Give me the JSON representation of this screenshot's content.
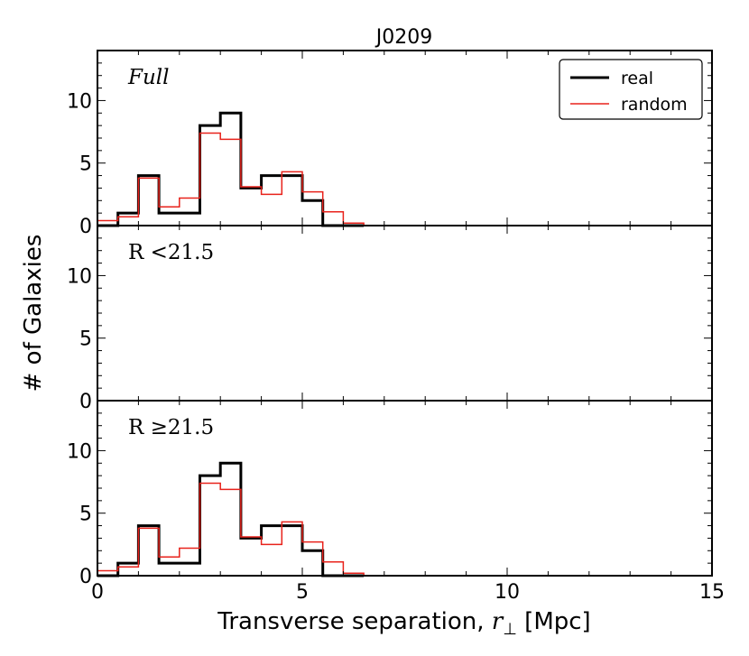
{
  "chart_data": {
    "type": "histogram",
    "title": "J0209",
    "xlabel_prefix": "Transverse separation, ",
    "xlabel_symbol": "r",
    "xlabel_sub": "⊥",
    "xlabel_suffix": " [Mpc]",
    "ylabel": "# of Galaxies",
    "xlim": [
      0,
      15
    ],
    "ylim": [
      0,
      14
    ],
    "xticks": [
      0,
      5,
      10,
      15
    ],
    "yticks": [
      0,
      5,
      10
    ],
    "bin_edges": [
      0,
      0.5,
      1,
      1.5,
      2,
      2.5,
      3,
      3.5,
      4,
      4.5,
      5,
      5.5,
      6,
      6.5
    ],
    "legend": {
      "position": "top-right",
      "entries": [
        {
          "name": "real",
          "color": "#000000"
        },
        {
          "name": "random",
          "color": "#e8221b"
        }
      ]
    },
    "panels": [
      {
        "label": "Full",
        "label_style": "italic",
        "series": [
          {
            "name": "real",
            "values": [
              0,
              1,
              4,
              1,
              1,
              8,
              9,
              3,
              4,
              4,
              2,
              0,
              0
            ]
          },
          {
            "name": "random",
            "values": [
              0.4,
              0.7,
              3.8,
              1.5,
              2.2,
              7.4,
              6.9,
              3.1,
              2.5,
              4.3,
              2.7,
              1.1,
              0.2
            ]
          }
        ]
      },
      {
        "label": "R <21.5",
        "label_style": "math",
        "series": []
      },
      {
        "label": "R ≥21.5",
        "label_style": "math",
        "series": [
          {
            "name": "real",
            "values": [
              0,
              1,
              4,
              1,
              1,
              8,
              9,
              3,
              4,
              4,
              2,
              0,
              0
            ]
          },
          {
            "name": "random",
            "values": [
              0.4,
              0.7,
              3.8,
              1.5,
              2.2,
              7.4,
              6.9,
              3.1,
              2.5,
              4.3,
              2.7,
              1.1,
              0.2
            ]
          }
        ]
      }
    ]
  }
}
